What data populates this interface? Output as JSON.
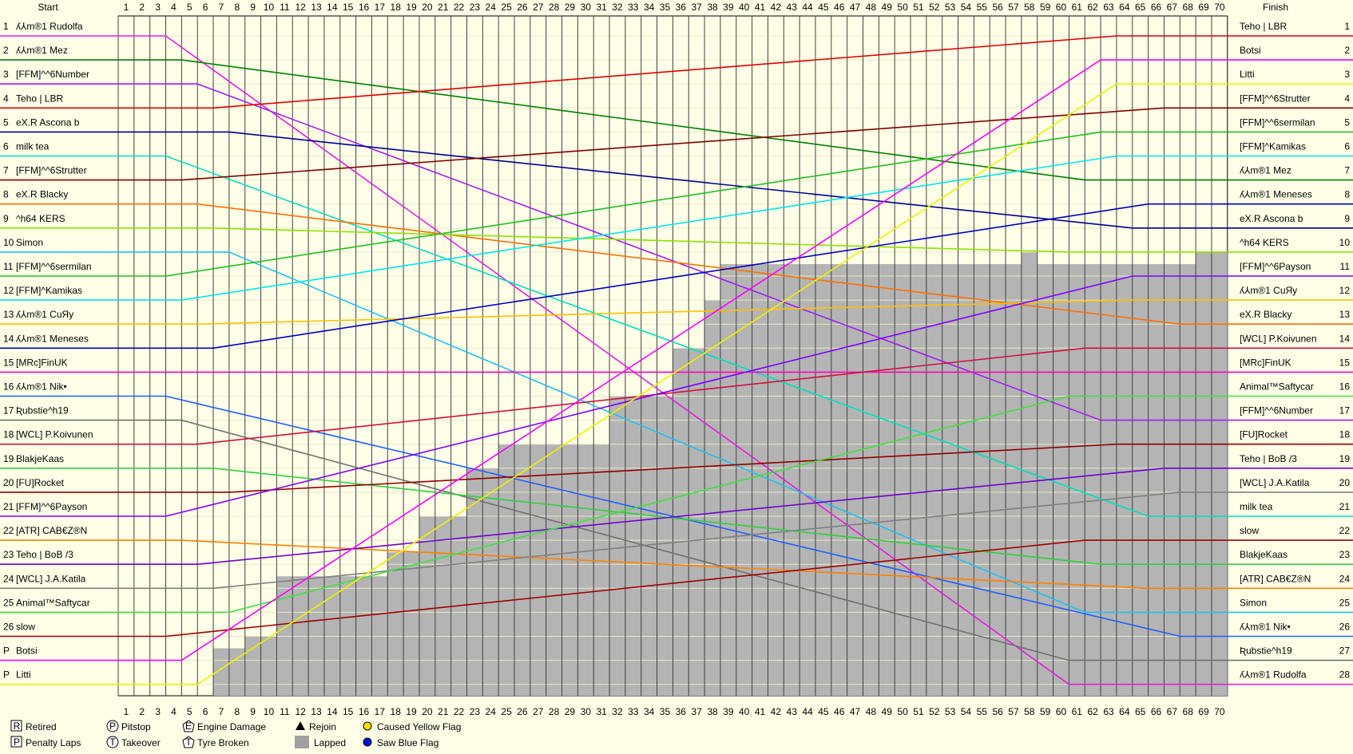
{
  "header": {
    "start": "Start",
    "finish": "Finish"
  },
  "laps": [
    1,
    2,
    3,
    4,
    5,
    6,
    7,
    8,
    9,
    10,
    11,
    12,
    13,
    14,
    15,
    16,
    17,
    18,
    19,
    20,
    21,
    22,
    23,
    24,
    25,
    26,
    27,
    28,
    29,
    30,
    31,
    32,
    33,
    34,
    35,
    36,
    37,
    38,
    39,
    40,
    41,
    42,
    43,
    44,
    45,
    46,
    47,
    48,
    49,
    50,
    51,
    52,
    53,
    54,
    55,
    56,
    57,
    58,
    59,
    60,
    61,
    62,
    63,
    64,
    65,
    66,
    67,
    68,
    69,
    70
  ],
  "start_grid": [
    {
      "position": "1",
      "driver": "ʎ⅄m®1 Rudolfa",
      "color": "#e020e0"
    },
    {
      "position": "2",
      "driver": "ʎ⅄m®1 Mez",
      "color": "#008000"
    },
    {
      "position": "3",
      "driver": "[FFM]^^6Number",
      "color": "#a020f0"
    },
    {
      "position": "4",
      "driver": "Teho | LBR",
      "color": "#e00000"
    },
    {
      "position": "5",
      "driver": "eX.R Ascona b",
      "color": "#000090"
    },
    {
      "position": "6",
      "driver": "milk tea",
      "color": "#00e0c0"
    },
    {
      "position": "7",
      "driver": "[FFM]^^6Strutter",
      "color": "#800000"
    },
    {
      "position": "8",
      "driver": "eX.R Blacky",
      "color": "#ff7000"
    },
    {
      "position": "9",
      "driver": "^h64 KERS",
      "color": "#90e000"
    },
    {
      "position": "10",
      "driver": "Simon",
      "color": "#20c0f0"
    },
    {
      "position": "11",
      "driver": "[FFM]^^6sermilan",
      "color": "#20c020"
    },
    {
      "position": "12",
      "driver": "[FFM]^Kamikas",
      "color": "#00e8e8"
    },
    {
      "position": "13",
      "driver": "ʎ⅄m®1 CuЯy",
      "color": "#ffc000"
    },
    {
      "position": "14",
      "driver": "ʎ⅄m®1 Meneses",
      "color": "#0000c0"
    },
    {
      "position": "15",
      "driver": "[MRc]FinUK",
      "color": "#ff00c0"
    },
    {
      "position": "16",
      "driver": "ʎ⅄m®1 Nik•",
      "color": "#2060ff"
    },
    {
      "position": "17",
      "driver": "Ʀubstie^h19",
      "color": "#707070"
    },
    {
      "position": "18",
      "driver": "[WCL] P.Koivunen",
      "color": "#d01040"
    },
    {
      "position": "19",
      "driver": "BlakjeKaas",
      "color": "#30d040"
    },
    {
      "position": "20",
      "driver": "[FU]Rocket",
      "color": "#900000"
    },
    {
      "position": "21",
      "driver": "[FFM]^^6Payson",
      "color": "#8000ff"
    },
    {
      "position": "22",
      "driver": "[ATR] CAB€Z®N",
      "color": "#ff8000"
    },
    {
      "position": "23",
      "driver": "Teho | BoB /3",
      "color": "#7000d0"
    },
    {
      "position": "24",
      "driver": "[WCL] J.A.Katila",
      "color": "#808080"
    },
    {
      "position": "25",
      "driver": "Animal™Saftycar",
      "color": "#40e040"
    },
    {
      "position": "26",
      "driver": "slow",
      "color": "#a00000"
    },
    {
      "position": "P",
      "driver": "Botsi",
      "color": "#ff00ff"
    },
    {
      "position": "P",
      "driver": "Litti",
      "color": "#f0f000"
    }
  ],
  "finish": [
    {
      "position": "1",
      "driver": "Teho | LBR"
    },
    {
      "position": "2",
      "driver": "Botsi"
    },
    {
      "position": "3",
      "driver": "Litti"
    },
    {
      "position": "4",
      "driver": "[FFM]^^6Strutter"
    },
    {
      "position": "5",
      "driver": "[FFM]^^6sermilan"
    },
    {
      "position": "6",
      "driver": "[FFM]^Kamikas"
    },
    {
      "position": "7",
      "driver": "ʎ⅄m®1 Mez"
    },
    {
      "position": "8",
      "driver": "ʎ⅄m®1 Meneses"
    },
    {
      "position": "9",
      "driver": "eX.R Ascona b"
    },
    {
      "position": "10",
      "driver": "^h64 KERS"
    },
    {
      "position": "11",
      "driver": "[FFM]^^6Payson"
    },
    {
      "position": "12",
      "driver": "ʎ⅄m®1 CuЯy"
    },
    {
      "position": "13",
      "driver": "eX.R Blacky"
    },
    {
      "position": "14",
      "driver": "[WCL] P.Koivunen"
    },
    {
      "position": "15",
      "driver": "[MRc]FinUK"
    },
    {
      "position": "16",
      "driver": "Animal™Saftycar"
    },
    {
      "position": "17",
      "driver": "[FFM]^^6Number"
    },
    {
      "position": "18",
      "driver": "[FU]Rocket"
    },
    {
      "position": "19",
      "driver": "Teho | BoB /3"
    },
    {
      "position": "20",
      "driver": "[WCL] J.A.Katila"
    },
    {
      "position": "21",
      "driver": "milk tea"
    },
    {
      "position": "22",
      "driver": "slow"
    },
    {
      "position": "23",
      "driver": "BlakjeKaas"
    },
    {
      "position": "24",
      "driver": "[ATR] CAB€Z®N"
    },
    {
      "position": "25",
      "driver": "Simon"
    },
    {
      "position": "26",
      "driver": "ʎ⅄m®1 Nik•"
    },
    {
      "position": "27",
      "driver": "Ʀubstie^h19"
    },
    {
      "position": "28",
      "driver": "ʎ⅄m®1 Rudolfa"
    }
  ],
  "legend": [
    {
      "symbol": "R",
      "label": "Retired"
    },
    {
      "symbol": "P",
      "label": "Penalty Laps"
    },
    {
      "symbol": "P",
      "label": "Pitstop"
    },
    {
      "symbol": "T",
      "label": "Takeover"
    },
    {
      "symbol": "E",
      "label": "Engine Damage"
    },
    {
      "symbol": "T",
      "label": "Tyre Broken"
    },
    {
      "label": "Rejoin"
    },
    {
      "label": "Lapped"
    },
    {
      "label": "Caused Yellow Flag"
    },
    {
      "label": "Saw Blue Flag"
    }
  ]
}
